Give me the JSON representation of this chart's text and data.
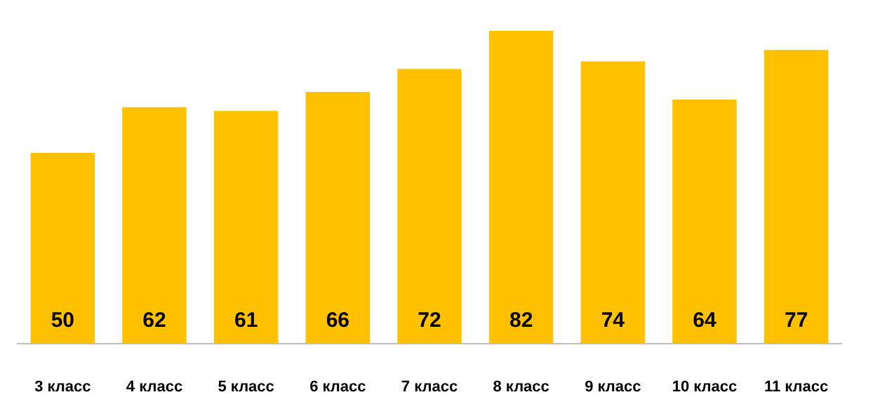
{
  "chart_data": {
    "type": "bar",
    "categories": [
      "3 класс",
      "4 класс",
      "5 класс",
      "6 класс",
      "7 класс",
      "8 класс",
      "9 класс",
      "10 класс",
      "11 класс"
    ],
    "values": [
      50,
      62,
      61,
      66,
      72,
      82,
      74,
      64,
      77
    ],
    "color": "#ffc000",
    "data_labels": true
  }
}
